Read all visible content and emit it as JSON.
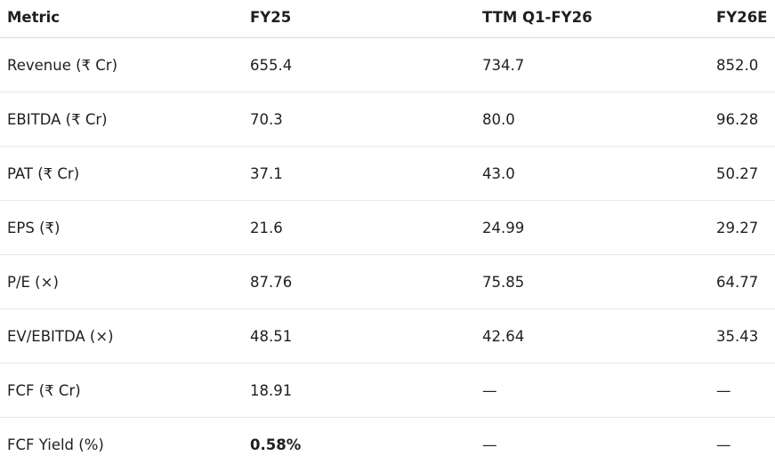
{
  "table": {
    "headers": [
      "Metric",
      "FY25",
      "TTM Q1-FY26",
      "FY26E"
    ],
    "rows": [
      [
        "Revenue (₹ Cr)",
        "655.4",
        "734.7",
        "852.0"
      ],
      [
        "EBITDA (₹ Cr)",
        "70.3",
        "80.0",
        "96.28"
      ],
      [
        "PAT (₹ Cr)",
        "37.1",
        "43.0",
        "50.27"
      ],
      [
        "EPS (₹)",
        "21.6",
        "24.99",
        "29.27"
      ],
      [
        "P/E (×)",
        "87.76",
        "75.85",
        "64.77"
      ],
      [
        "EV/EBITDA (×)",
        "48.51",
        "42.64",
        "35.43"
      ],
      [
        "FCF (₹ Cr)",
        "18.91",
        "—",
        "—"
      ],
      [
        "FCF Yield (%)",
        "0.58%",
        "—",
        "—"
      ]
    ]
  }
}
